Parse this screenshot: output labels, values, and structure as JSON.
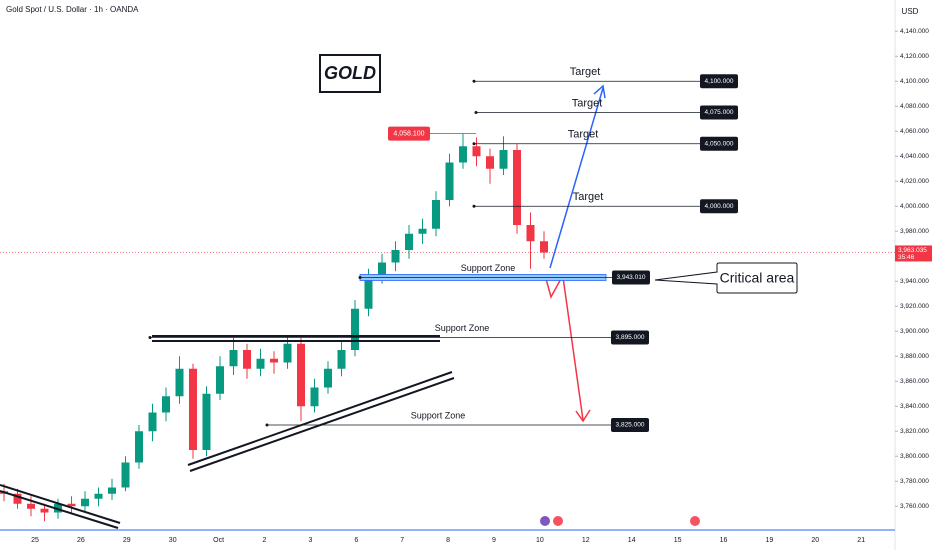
{
  "chart_data": {
    "type": "candlestick",
    "title": "Gold Spot / U.S. Dollar · 1h · OANDA",
    "currency": "USD",
    "badge": "GOLD",
    "callout": "Critical area",
    "up_color": "#089981",
    "down_color": "#f23645",
    "ylim": [
      3741,
      4165
    ],
    "yticks": [
      {
        "value": 3760,
        "label": "3,760.000"
      },
      {
        "value": 3780,
        "label": "3,780.000"
      },
      {
        "value": 3800,
        "label": "3,800.000"
      },
      {
        "value": 3820,
        "label": "3,820.000"
      },
      {
        "value": 3840,
        "label": "3,840.000"
      },
      {
        "value": 3860,
        "label": "3,860.000"
      },
      {
        "value": 3880,
        "label": "3,880.000"
      },
      {
        "value": 3900,
        "label": "3,900.000"
      },
      {
        "value": 3920,
        "label": "3,920.000"
      },
      {
        "value": 3940,
        "label": "3,940.000"
      },
      {
        "value": 3960,
        "label": "3,960.000"
      },
      {
        "value": 3980,
        "label": "3,980.000"
      },
      {
        "value": 4000,
        "label": "4,000.000"
      },
      {
        "value": 4020,
        "label": "4,020.000"
      },
      {
        "value": 4040,
        "label": "4,040.000"
      },
      {
        "value": 4060,
        "label": "4,060.000"
      },
      {
        "value": 4080,
        "label": "4,080.000"
      },
      {
        "value": 4100,
        "label": "4,100.000"
      },
      {
        "value": 4120,
        "label": "4,120.000"
      },
      {
        "value": 4140,
        "label": "4,140.000"
      }
    ],
    "categories": [
      "25",
      "26",
      "29",
      "30",
      "Oct",
      "2",
      "3",
      "6",
      "7",
      "8",
      "9",
      "10",
      "12",
      "14",
      "15",
      "16",
      "19",
      "20",
      "21"
    ],
    "ohlc": [
      [
        3772,
        3778,
        3764,
        3770
      ],
      [
        3770,
        3774,
        3758,
        3762
      ],
      [
        3762,
        3768,
        3752,
        3758
      ],
      [
        3758,
        3762,
        3748,
        3755
      ],
      [
        3755,
        3766,
        3750,
        3762
      ],
      [
        3762,
        3768,
        3755,
        3760
      ],
      [
        3760,
        3772,
        3756,
        3766
      ],
      [
        3766,
        3775,
        3760,
        3770
      ],
      [
        3770,
        3782,
        3765,
        3775
      ],
      [
        3775,
        3800,
        3772,
        3795
      ],
      [
        3795,
        3825,
        3790,
        3820
      ],
      [
        3820,
        3842,
        3812,
        3835
      ],
      [
        3835,
        3855,
        3828,
        3848
      ],
      [
        3848,
        3880,
        3842,
        3870
      ],
      [
        3870,
        3874,
        3798,
        3805
      ],
      [
        3805,
        3856,
        3800,
        3850
      ],
      [
        3850,
        3880,
        3845,
        3872
      ],
      [
        3872,
        3895,
        3865,
        3885
      ],
      [
        3885,
        3890,
        3862,
        3870
      ],
      [
        3870,
        3886,
        3864,
        3878
      ],
      [
        3878,
        3884,
        3866,
        3875
      ],
      [
        3875,
        3897,
        3870,
        3890
      ],
      [
        3890,
        3895,
        3828,
        3840
      ],
      [
        3840,
        3862,
        3835,
        3855
      ],
      [
        3855,
        3876,
        3850,
        3870
      ],
      [
        3870,
        3892,
        3864,
        3885
      ],
      [
        3885,
        3925,
        3880,
        3918
      ],
      [
        3918,
        3950,
        3912,
        3945
      ],
      [
        3945,
        3962,
        3938,
        3955
      ],
      [
        3955,
        3972,
        3948,
        3965
      ],
      [
        3965,
        3985,
        3958,
        3978
      ],
      [
        3978,
        3990,
        3970,
        3982
      ],
      [
        3982,
        4012,
        3976,
        4005
      ],
      [
        4005,
        4042,
        4000,
        4035
      ],
      [
        4035,
        4058.1,
        4030,
        4048
      ],
      [
        4048,
        4055,
        4032,
        4040
      ],
      [
        4040,
        4046,
        4018,
        4030
      ],
      [
        4030,
        4056,
        4025,
        4045
      ],
      [
        4045,
        4050,
        3978,
        3985
      ],
      [
        3985,
        3995,
        3950,
        3972
      ],
      [
        3972,
        3980,
        3958,
        3963
      ]
    ],
    "high_marker": {
      "value": 4058.1,
      "label": "4,058.100"
    },
    "last_price": {
      "value": 3963.035,
      "label": "3,963.035",
      "countdown": "35:46"
    },
    "levels": [
      {
        "value": 4100,
        "label": "4,100.000",
        "note": "Target"
      },
      {
        "value": 4075,
        "label": "4,075.000",
        "note": "Target"
      },
      {
        "value": 4050,
        "label": "4,050.000",
        "note": "Target"
      },
      {
        "value": 4000,
        "label": "4,000.000",
        "note": "Target"
      },
      {
        "value": 3943.01,
        "label": "3,943.010",
        "note": "Support Zone"
      },
      {
        "value": 3895,
        "label": "3,895.000",
        "note": "Support Zone"
      },
      {
        "value": 3825,
        "label": "3,825.000",
        "note": "Support Zone"
      }
    ]
  }
}
